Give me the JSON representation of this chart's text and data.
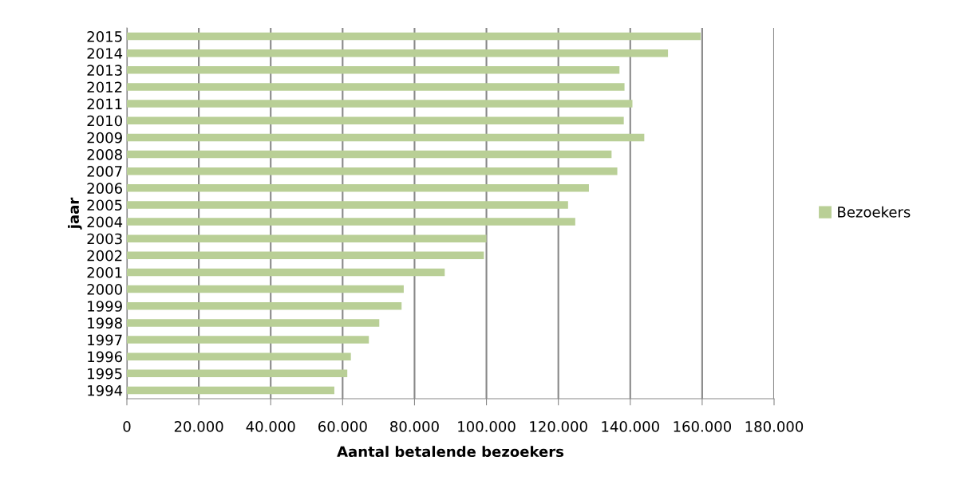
{
  "chart_data": {
    "type": "bar",
    "orientation": "horizontal",
    "xlabel": "Aantal betalende bezoekers",
    "ylabel": "jaar",
    "categories": [
      "2015",
      "2014",
      "2013",
      "2012",
      "2011",
      "2010",
      "2009",
      "2008",
      "2007",
      "2006",
      "2005",
      "2004",
      "2003",
      "2002",
      "2001",
      "2000",
      "1999",
      "1998",
      "1997",
      "1996",
      "1995",
      "1994"
    ],
    "series": [
      {
        "name": "Bezoekers",
        "color": "#b9cf96",
        "values": [
          159600,
          150500,
          137000,
          138400,
          140600,
          138200,
          143900,
          134800,
          136400,
          128500,
          122700,
          124700,
          100000,
          99300,
          88400,
          77000,
          76400,
          70200,
          67300,
          62300,
          61300,
          57700
        ]
      }
    ],
    "xlim": [
      0,
      180000
    ],
    "xticks": [
      0,
      {
        "value": 20000,
        "label": "20.000"
      },
      {
        "value": 40000,
        "label": "40.000"
      },
      {
        "value": 60000,
        "label": "60.000"
      },
      {
        "value": 80000,
        "label": "80.000"
      },
      {
        "value": 100000,
        "label": "100.000"
      },
      {
        "value": 120000,
        "label": "120.000"
      },
      {
        "value": 140000,
        "label": "140.000"
      },
      {
        "value": 160000,
        "label": "160.000"
      },
      {
        "value": 180000,
        "label": "180.000"
      }
    ],
    "grid": "x",
    "legend": "right"
  }
}
